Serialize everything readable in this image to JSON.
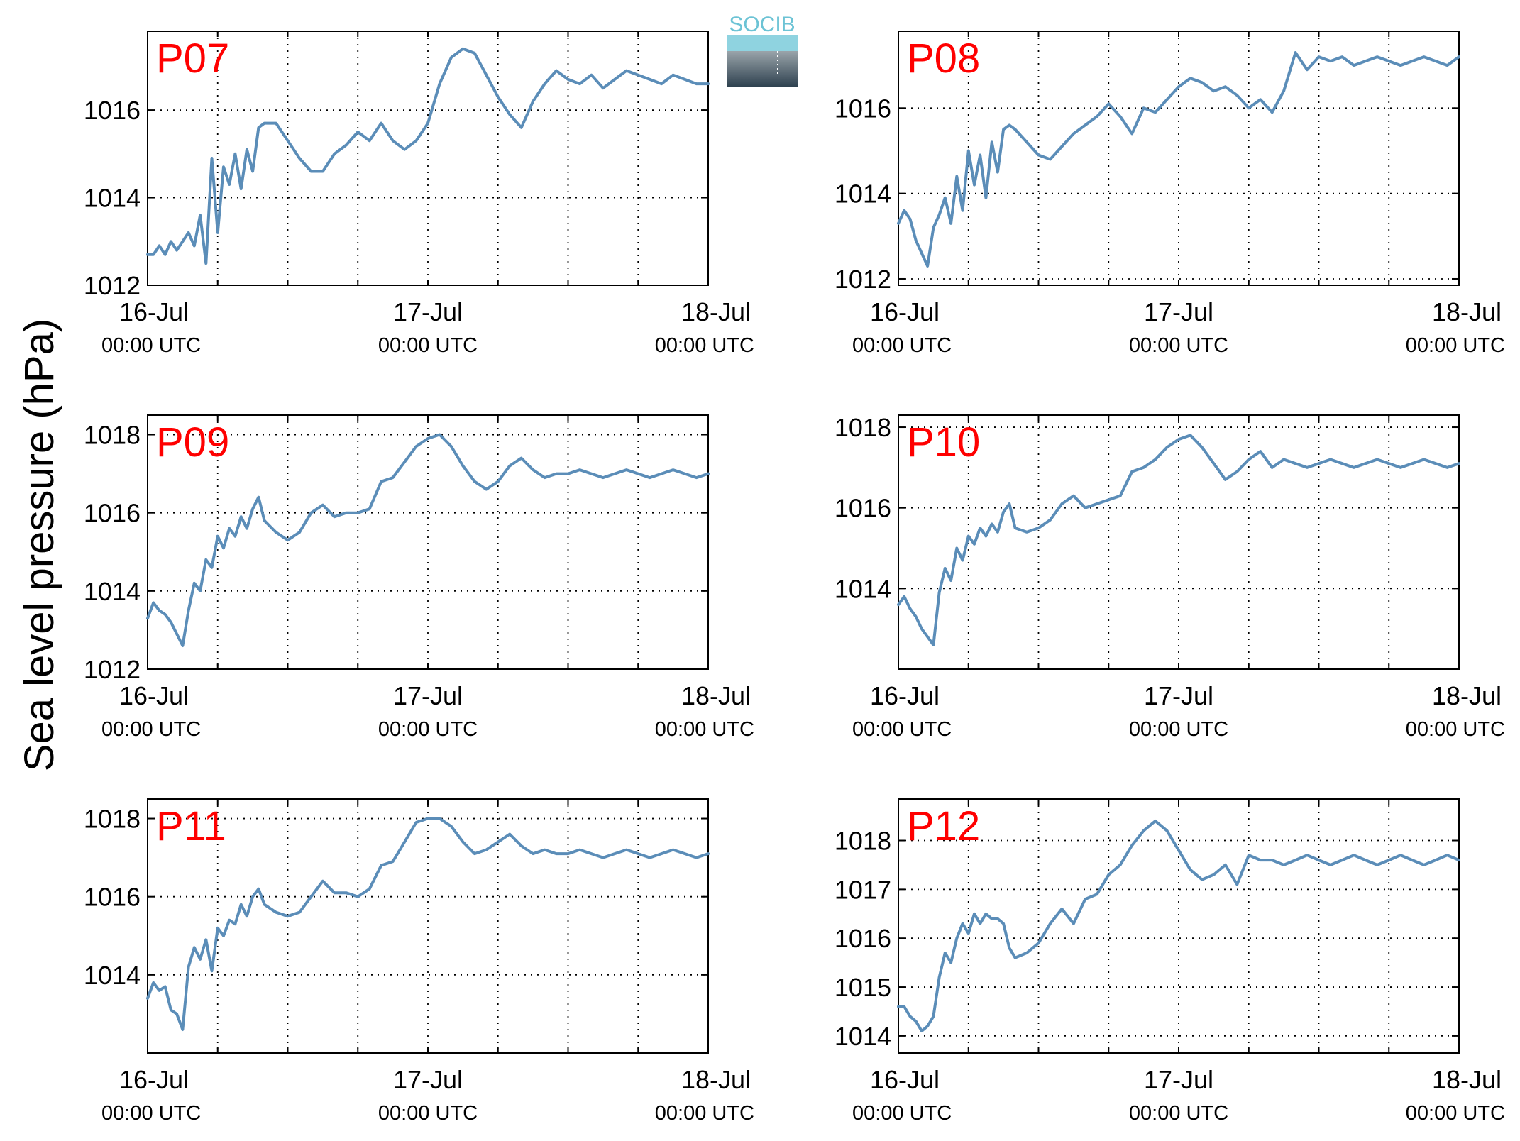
{
  "ylabel": "Sea level pressure (hPa)",
  "logo": {
    "text": "SOCIB"
  },
  "colors": {
    "series": "#5b8db8",
    "station_label": "#ff0000"
  },
  "chart_data": [
    {
      "type": "line",
      "title": "P07",
      "x_ticks": [
        "16-Jul",
        "17-Jul",
        "18-Jul"
      ],
      "x_subticks": [
        "00:00 UTC",
        "00:00 UTC",
        "00:00 UTC"
      ],
      "x_range_hours": [
        0,
        48
      ],
      "ylim": [
        1012,
        1017.8
      ],
      "y_ticks": [
        "1012",
        "1014",
        "1016"
      ],
      "y_tick_values": [
        1012,
        1014,
        1016
      ],
      "grid": true,
      "series": [
        {
          "x": [
            0,
            0.5,
            1,
            1.5,
            2,
            2.5,
            3,
            3.5,
            4,
            4.5,
            5,
            5.5,
            6,
            6.5,
            7,
            7.5,
            8,
            8.5,
            9,
            9.5,
            10,
            11,
            12,
            13,
            14,
            15,
            16,
            17,
            18,
            19,
            20,
            21,
            22,
            23,
            24,
            25,
            26,
            27,
            28,
            29,
            30,
            31,
            32,
            33,
            34,
            35,
            36,
            37,
            38,
            39,
            40,
            41,
            42,
            43,
            44,
            45,
            46,
            47,
            48
          ],
          "y": [
            1012.7,
            1012.7,
            1012.9,
            1012.7,
            1013.0,
            1012.8,
            1013.0,
            1013.2,
            1012.9,
            1013.6,
            1012.5,
            1014.9,
            1013.2,
            1014.7,
            1014.3,
            1015.0,
            1014.2,
            1015.1,
            1014.6,
            1015.6,
            1015.7,
            1015.7,
            1015.3,
            1014.9,
            1014.6,
            1014.6,
            1015.0,
            1015.2,
            1015.5,
            1015.3,
            1015.7,
            1015.3,
            1015.1,
            1015.3,
            1015.7,
            1016.6,
            1017.2,
            1017.4,
            1017.3,
            1016.8,
            1016.3,
            1015.9,
            1015.6,
            1016.2,
            1016.6,
            1016.9,
            1016.7,
            1016.6,
            1016.8,
            1016.5,
            1016.7,
            1016.9,
            1016.8,
            1016.7,
            1016.6,
            1016.8,
            1016.7,
            1016.6,
            1016.6
          ]
        }
      ]
    },
    {
      "type": "line",
      "title": "P08",
      "x_ticks": [
        "16-Jul",
        "17-Jul",
        "18-Jul"
      ],
      "x_subticks": [
        "00:00 UTC",
        "00:00 UTC",
        "00:00 UTC"
      ],
      "x_range_hours": [
        0,
        48
      ],
      "ylim": [
        1011.85,
        1017.8
      ],
      "y_ticks": [
        "1012",
        "1014",
        "1016"
      ],
      "y_tick_values": [
        1012,
        1014,
        1016
      ],
      "grid": true,
      "series": [
        {
          "x": [
            0,
            0.5,
            1,
            1.5,
            2,
            2.5,
            3,
            3.5,
            4,
            4.5,
            5,
            5.5,
            6,
            6.5,
            7,
            7.5,
            8,
            8.5,
            9,
            9.5,
            10,
            11,
            12,
            13,
            14,
            15,
            16,
            17,
            18,
            19,
            20,
            21,
            22,
            23,
            24,
            25,
            26,
            27,
            28,
            29,
            30,
            31,
            32,
            33,
            34,
            35,
            36,
            37,
            38,
            39,
            40,
            41,
            42,
            43,
            44,
            45,
            46,
            47,
            48
          ],
          "y": [
            1013.3,
            1013.6,
            1013.4,
            1012.9,
            1012.6,
            1012.3,
            1013.2,
            1013.5,
            1013.9,
            1013.3,
            1014.4,
            1013.6,
            1015.0,
            1014.2,
            1014.9,
            1013.9,
            1015.2,
            1014.5,
            1015.5,
            1015.6,
            1015.5,
            1015.2,
            1014.9,
            1014.8,
            1015.1,
            1015.4,
            1015.6,
            1015.8,
            1016.1,
            1015.8,
            1015.4,
            1016.0,
            1015.9,
            1016.2,
            1016.5,
            1016.7,
            1016.6,
            1016.4,
            1016.5,
            1016.3,
            1016.0,
            1016.2,
            1015.9,
            1016.4,
            1017.3,
            1016.9,
            1017.2,
            1017.1,
            1017.2,
            1017.0,
            1017.1,
            1017.2,
            1017.1,
            1017.0,
            1017.1,
            1017.2,
            1017.1,
            1017.0,
            1017.2
          ]
        }
      ]
    },
    {
      "type": "line",
      "title": "P09",
      "x_ticks": [
        "16-Jul",
        "17-Jul",
        "18-Jul"
      ],
      "x_subticks": [
        "00:00 UTC",
        "00:00 UTC",
        "00:00 UTC"
      ],
      "x_range_hours": [
        0,
        48
      ],
      "ylim": [
        1012,
        1018.5
      ],
      "y_ticks": [
        "1012",
        "1014",
        "1016",
        "1018"
      ],
      "y_tick_values": [
        1012,
        1014,
        1016,
        1018
      ],
      "grid": true,
      "series": [
        {
          "x": [
            0,
            0.5,
            1,
            1.5,
            2,
            2.5,
            3,
            3.5,
            4,
            4.5,
            5,
            5.5,
            6,
            6.5,
            7,
            7.5,
            8,
            8.5,
            9,
            9.5,
            10,
            11,
            12,
            13,
            14,
            15,
            16,
            17,
            18,
            19,
            20,
            21,
            22,
            23,
            24,
            25,
            26,
            27,
            28,
            29,
            30,
            31,
            32,
            33,
            34,
            35,
            36,
            37,
            38,
            39,
            40,
            41,
            42,
            43,
            44,
            45,
            46,
            47,
            48
          ],
          "y": [
            1013.3,
            1013.7,
            1013.5,
            1013.4,
            1013.2,
            1012.9,
            1012.6,
            1013.5,
            1014.2,
            1014.0,
            1014.8,
            1014.6,
            1015.4,
            1015.1,
            1015.6,
            1015.4,
            1015.9,
            1015.6,
            1016.1,
            1016.4,
            1015.8,
            1015.5,
            1015.3,
            1015.5,
            1016.0,
            1016.2,
            1015.9,
            1016.0,
            1016.0,
            1016.1,
            1016.8,
            1016.9,
            1017.3,
            1017.7,
            1017.9,
            1018.0,
            1017.7,
            1017.2,
            1016.8,
            1016.6,
            1016.8,
            1017.2,
            1017.4,
            1017.1,
            1016.9,
            1017.0,
            1017.0,
            1017.1,
            1017.0,
            1016.9,
            1017.0,
            1017.1,
            1017.0,
            1016.9,
            1017.0,
            1017.1,
            1017.0,
            1016.9,
            1017.0
          ]
        }
      ]
    },
    {
      "type": "line",
      "title": "P10",
      "x_ticks": [
        "16-Jul",
        "17-Jul",
        "18-Jul"
      ],
      "x_subticks": [
        "00:00 UTC",
        "00:00 UTC",
        "00:00 UTC"
      ],
      "x_range_hours": [
        0,
        48
      ],
      "ylim": [
        1012,
        1018.3
      ],
      "y_ticks": [
        "1014",
        "1016",
        "1018"
      ],
      "y_tick_values": [
        1014,
        1016,
        1018
      ],
      "grid": true,
      "series": [
        {
          "x": [
            0,
            0.5,
            1,
            1.5,
            2,
            2.5,
            3,
            3.5,
            4,
            4.5,
            5,
            5.5,
            6,
            6.5,
            7,
            7.5,
            8,
            8.5,
            9,
            9.5,
            10,
            11,
            12,
            13,
            14,
            15,
            16,
            17,
            18,
            19,
            20,
            21,
            22,
            23,
            24,
            25,
            26,
            27,
            28,
            29,
            30,
            31,
            32,
            33,
            34,
            35,
            36,
            37,
            38,
            39,
            40,
            41,
            42,
            43,
            44,
            45,
            46,
            47,
            48
          ],
          "y": [
            1013.6,
            1013.8,
            1013.5,
            1013.3,
            1013.0,
            1012.8,
            1012.6,
            1013.9,
            1014.5,
            1014.2,
            1015.0,
            1014.7,
            1015.3,
            1015.1,
            1015.5,
            1015.3,
            1015.6,
            1015.4,
            1015.9,
            1016.1,
            1015.5,
            1015.4,
            1015.5,
            1015.7,
            1016.1,
            1016.3,
            1016.0,
            1016.1,
            1016.2,
            1016.3,
            1016.9,
            1017.0,
            1017.2,
            1017.5,
            1017.7,
            1017.8,
            1017.5,
            1017.1,
            1016.7,
            1016.9,
            1017.2,
            1017.4,
            1017.0,
            1017.2,
            1017.1,
            1017.0,
            1017.1,
            1017.2,
            1017.1,
            1017.0,
            1017.1,
            1017.2,
            1017.1,
            1017.0,
            1017.1,
            1017.2,
            1017.1,
            1017.0,
            1017.1
          ]
        }
      ]
    },
    {
      "type": "line",
      "title": "P11",
      "x_ticks": [
        "16-Jul",
        "17-Jul",
        "18-Jul"
      ],
      "x_subticks": [
        "00:00 UTC",
        "00:00 UTC",
        "00:00 UTC"
      ],
      "x_range_hours": [
        0,
        48
      ],
      "ylim": [
        1012,
        1018.5
      ],
      "y_ticks": [
        "1014",
        "1016",
        "1018"
      ],
      "y_tick_values": [
        1014,
        1016,
        1018
      ],
      "grid": true,
      "series": [
        {
          "x": [
            0,
            0.5,
            1,
            1.5,
            2,
            2.5,
            3,
            3.5,
            4,
            4.5,
            5,
            5.5,
            6,
            6.5,
            7,
            7.5,
            8,
            8.5,
            9,
            9.5,
            10,
            11,
            12,
            13,
            14,
            15,
            16,
            17,
            18,
            19,
            20,
            21,
            22,
            23,
            24,
            25,
            26,
            27,
            28,
            29,
            30,
            31,
            32,
            33,
            34,
            35,
            36,
            37,
            38,
            39,
            40,
            41,
            42,
            43,
            44,
            45,
            46,
            47,
            48
          ],
          "y": [
            1013.4,
            1013.8,
            1013.6,
            1013.7,
            1013.1,
            1013.0,
            1012.6,
            1014.2,
            1014.7,
            1014.4,
            1014.9,
            1014.1,
            1015.2,
            1015.0,
            1015.4,
            1015.3,
            1015.8,
            1015.5,
            1016.0,
            1016.2,
            1015.8,
            1015.6,
            1015.5,
            1015.6,
            1016.0,
            1016.4,
            1016.1,
            1016.1,
            1016.0,
            1016.2,
            1016.8,
            1016.9,
            1017.4,
            1017.9,
            1018.0,
            1018.0,
            1017.8,
            1017.4,
            1017.1,
            1017.2,
            1017.4,
            1017.6,
            1017.3,
            1017.1,
            1017.2,
            1017.1,
            1017.1,
            1017.2,
            1017.1,
            1017.0,
            1017.1,
            1017.2,
            1017.1,
            1017.0,
            1017.1,
            1017.2,
            1017.1,
            1017.0,
            1017.1
          ]
        }
      ]
    },
    {
      "type": "line",
      "title": "P12",
      "x_ticks": [
        "16-Jul",
        "17-Jul",
        "18-Jul"
      ],
      "x_subticks": [
        "00:00 UTC",
        "00:00 UTC",
        "00:00 UTC"
      ],
      "x_range_hours": [
        0,
        48
      ],
      "ylim": [
        1013.65,
        1018.85
      ],
      "y_ticks": [
        "1014",
        "1015",
        "1016",
        "1017",
        "1018"
      ],
      "y_tick_values": [
        1014,
        1015,
        1016,
        1017,
        1018
      ],
      "grid": true,
      "series": [
        {
          "x": [
            0,
            0.5,
            1,
            1.5,
            2,
            2.5,
            3,
            3.5,
            4,
            4.5,
            5,
            5.5,
            6,
            6.5,
            7,
            7.5,
            8,
            8.5,
            9,
            9.5,
            10,
            11,
            12,
            13,
            14,
            15,
            16,
            17,
            18,
            19,
            20,
            21,
            22,
            23,
            24,
            25,
            26,
            27,
            28,
            29,
            30,
            31,
            32,
            33,
            34,
            35,
            36,
            37,
            38,
            39,
            40,
            41,
            42,
            43,
            44,
            45,
            46,
            47,
            48
          ],
          "y": [
            1014.6,
            1014.6,
            1014.4,
            1014.3,
            1014.1,
            1014.2,
            1014.4,
            1015.2,
            1015.7,
            1015.5,
            1016.0,
            1016.3,
            1016.1,
            1016.5,
            1016.3,
            1016.5,
            1016.4,
            1016.4,
            1016.3,
            1015.8,
            1015.6,
            1015.7,
            1015.9,
            1016.3,
            1016.6,
            1016.3,
            1016.8,
            1016.9,
            1017.3,
            1017.5,
            1017.9,
            1018.2,
            1018.4,
            1018.2,
            1017.8,
            1017.4,
            1017.2,
            1017.3,
            1017.5,
            1017.1,
            1017.7,
            1017.6,
            1017.6,
            1017.5,
            1017.6,
            1017.7,
            1017.6,
            1017.5,
            1017.6,
            1017.7,
            1017.6,
            1017.5,
            1017.6,
            1017.7,
            1017.6,
            1017.5,
            1017.6,
            1017.7,
            1017.6
          ]
        }
      ]
    }
  ]
}
